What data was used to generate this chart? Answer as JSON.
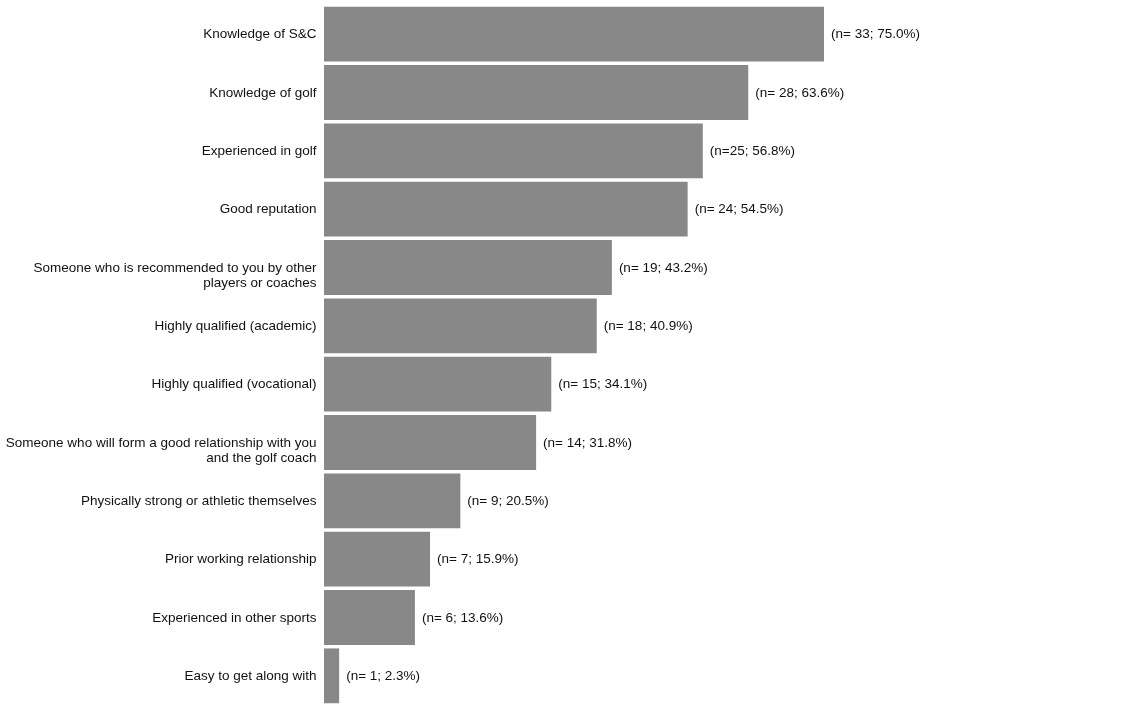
{
  "chart_data": {
    "type": "bar",
    "orientation": "horizontal",
    "categories": [
      "Knowledge of S&C",
      "Knowledge of golf",
      "Experienced in golf",
      "Good reputation",
      "Someone who is recommended to you by other\nplayers or coaches",
      "Highly qualified (academic)",
      "Highly qualified (vocational)",
      "Someone who will form a good relationship with you\nand the golf coach",
      "Physically strong or athletic themselves",
      "Prior working relationship",
      "Experienced in other sports",
      "Easy to get along with"
    ],
    "values": [
      33,
      28,
      25,
      24,
      19,
      18,
      15,
      14,
      9,
      7,
      6,
      1
    ],
    "value_labels": [
      "(n= 33; 75.0%)",
      "(n= 28; 63.6%)",
      "(n=25; 56.8%)",
      "(n= 24; 54.5%)",
      "(n= 19; 43.2%)",
      "(n= 18; 40.9%)",
      "(n= 15; 34.1%)",
      "(n= 14; 31.8%)",
      "(n= 9; 20.5%)",
      "(n= 7; 15.9%)",
      "(n= 6; 13.6%)",
      "(n= 1; 2.3%)"
    ],
    "color": "#888888",
    "tick_labels": "y"
  }
}
